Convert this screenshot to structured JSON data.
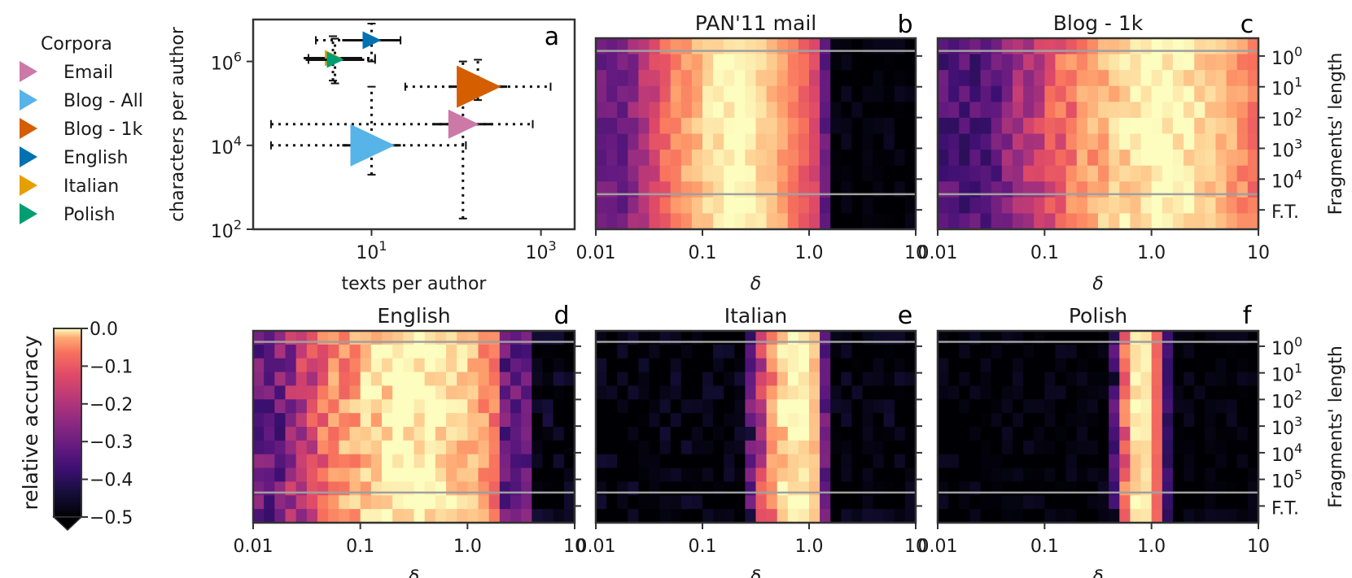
{
  "figure": {
    "legend": {
      "title": "Corpora",
      "entries": [
        {
          "label": "Email",
          "color": "#cc79a7"
        },
        {
          "label": "Blog - All",
          "color": "#56b4e9"
        },
        {
          "label": "Blog - 1k",
          "color": "#d55e00"
        },
        {
          "label": "English",
          "color": "#0072b2"
        },
        {
          "label": "Italian",
          "color": "#e69f00"
        },
        {
          "label": "Polish",
          "color": "#009e73"
        }
      ]
    },
    "colorbar": {
      "label": "relative accuracy",
      "colormap": "magma",
      "range": [
        -0.5,
        0.0
      ],
      "tick_labels": [
        "0.0",
        "−0.1",
        "−0.2",
        "−0.3",
        "−0.4",
        "−0.5"
      ]
    }
  },
  "chart_data": [
    {
      "panel": "a",
      "type": "scatter",
      "title": "",
      "xlabel": "texts per author",
      "ylabel": "characters per author",
      "xscale": "log",
      "yscale": "log",
      "xlim": [
        0.4,
        2500
      ],
      "ylim": [
        100,
        10000000
      ],
      "xticks": [
        {
          "value": 10,
          "base": "10",
          "exp": "1"
        },
        {
          "value": 1000,
          "base": "10",
          "exp": "3"
        }
      ],
      "yticks": [
        {
          "value": 100,
          "base": "10",
          "exp": "2"
        },
        {
          "value": 10000,
          "base": "10",
          "exp": "4"
        },
        {
          "value": 1000000,
          "base": "10",
          "exp": "6"
        }
      ],
      "points": [
        {
          "name": "Email",
          "x": 120,
          "y": 32000,
          "x_range": [
            0.65,
            800
          ],
          "y_range": [
            180,
            1000000
          ],
          "color": "#cc79a7"
        },
        {
          "name": "Blog - All",
          "x": 10,
          "y": 10000,
          "x_range": [
            0.65,
            130
          ],
          "y_range": [
            2000,
            250000
          ],
          "color": "#56b4e9"
        },
        {
          "name": "Blog - 1k",
          "x": 180,
          "y": 250000,
          "x_range": [
            25,
            1300
          ],
          "y_range": [
            120000,
            1100000
          ],
          "color": "#d55e00"
        },
        {
          "name": "English",
          "x": 10,
          "y": 3200000,
          "x_range": [
            2.2,
            22
          ],
          "y_range": [
            1000000,
            8000000
          ],
          "color": "#0072b2"
        },
        {
          "name": "Italian",
          "x": 3.5,
          "y": 1200000,
          "x_range": [
            1.8,
            11
          ],
          "y_range": [
            350000,
            4000000
          ],
          "color": "#e69f00"
        },
        {
          "name": "Polish",
          "x": 3.7,
          "y": 1100000,
          "x_range": [
            1.8,
            11
          ],
          "y_range": [
            300000,
            3500000
          ],
          "color": "#009e73"
        }
      ]
    },
    {
      "panel": "b",
      "type": "heatmap",
      "title": "PAN'11 mail",
      "xlabel": "δ",
      "xscale": "log",
      "x_tick_labels": [
        "0.01",
        "0.1",
        "1.0",
        "10"
      ],
      "n_rows": 12,
      "n_cols": 30,
      "right_tick_labels": [],
      "pattern": {
        "peak_log_delta": -0.7,
        "width": 1.15,
        "falloff": 1.5,
        "floor": 0.32,
        "cutoff_log_delta": 0.2,
        "near_cutoff_log_delta": 0.13,
        "row_variation": 0.02
      },
      "horizontal_lines_after_rows": [
        1,
        10
      ]
    },
    {
      "panel": "c",
      "type": "heatmap",
      "title": "Blog - 1k",
      "xlabel": "δ",
      "xscale": "log",
      "x_tick_labels": [
        "0.01",
        "0.1",
        "1.0",
        "10"
      ],
      "n_rows": 12,
      "n_cols": 30,
      "right_tick_labels": [
        {
          "base": "10",
          "exp": "0"
        },
        {
          "base": "10",
          "exp": "1"
        },
        {
          "base": "10",
          "exp": "2"
        },
        {
          "base": "10",
          "exp": "3"
        },
        {
          "base": "10",
          "exp": "4"
        },
        {
          "base": "F.T.",
          "exp": ""
        }
      ],
      "right_axis_label": "Fragments' length",
      "pattern": {
        "peak_log_delta": 0.1,
        "width": 1.7,
        "falloff": 1.5,
        "floor": 0.25,
        "cutoff_log_delta": 1.3,
        "near_cutoff_log_delta": 1.0,
        "row_variation": 0.03
      },
      "horizontal_lines_after_rows": [
        1,
        10
      ]
    },
    {
      "panel": "d",
      "type": "heatmap",
      "title": "English",
      "xlabel": "δ",
      "xscale": "log",
      "x_tick_labels": [
        "0.01",
        "0.1",
        "1.0",
        "10"
      ],
      "n_rows": 14,
      "n_cols": 30,
      "right_tick_labels": [],
      "pattern": {
        "peak_log_delta": -0.5,
        "width": 1.4,
        "falloff": 1.7,
        "floor": 0.3,
        "cutoff_log_delta": 0.55,
        "near_cutoff_log_delta": 0.25,
        "row_variation": 0.04
      },
      "horizontal_lines_after_rows": [
        1,
        12
      ]
    },
    {
      "panel": "e",
      "type": "heatmap",
      "title": "Italian",
      "xlabel": "δ",
      "xscale": "log",
      "x_tick_labels": [
        "0.01",
        "0.1",
        "1.0",
        "10"
      ],
      "n_rows": 14,
      "n_cols": 30,
      "right_tick_labels": [],
      "pattern": {
        "peak_log_delta": -0.12,
        "width": 0.45,
        "falloff": 1.8,
        "floor": 0.0,
        "cutoff_log_delta": 0.15,
        "near_cutoff_log_delta": 0.05,
        "row_variation": 0.03
      },
      "horizontal_lines_after_rows": [
        1,
        12
      ]
    },
    {
      "panel": "f",
      "type": "heatmap",
      "title": "Polish",
      "xlabel": "δ",
      "xscale": "log",
      "x_tick_labels": [
        "0.01",
        "0.1",
        "1.0",
        "10"
      ],
      "n_rows": 14,
      "n_cols": 30,
      "right_tick_labels": [
        {
          "base": "10",
          "exp": "0"
        },
        {
          "base": "10",
          "exp": "1"
        },
        {
          "base": "10",
          "exp": "2"
        },
        {
          "base": "10",
          "exp": "3"
        },
        {
          "base": "10",
          "exp": "4"
        },
        {
          "base": "10",
          "exp": "5"
        },
        {
          "base": "F.T.",
          "exp": ""
        }
      ],
      "right_axis_label": "Fragments' length",
      "pattern": {
        "peak_log_delta": -0.1,
        "width": 0.25,
        "falloff": 1.8,
        "floor": 0.0,
        "cutoff_log_delta": 0.35,
        "near_cutoff_log_delta": 0.2,
        "row_variation": 0.02
      },
      "horizontal_lines_after_rows": [
        1,
        12
      ]
    }
  ]
}
